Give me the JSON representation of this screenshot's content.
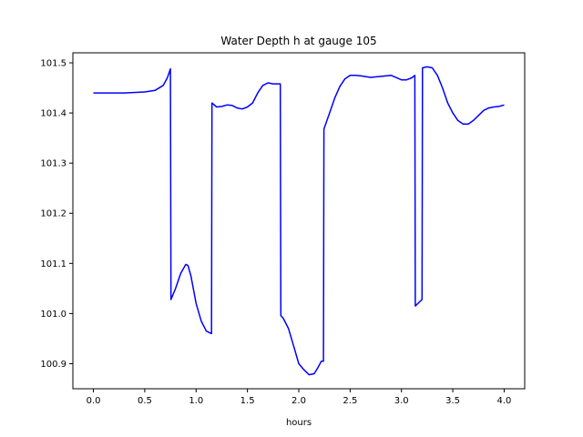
{
  "chart_data": {
    "type": "line",
    "title": "Water Depth h at gauge 105",
    "xlabel": "hours",
    "ylabel": "",
    "xlim": [
      -0.2,
      4.2
    ],
    "ylim": [
      100.85,
      101.52
    ],
    "xticks": [
      0.0,
      0.5,
      1.0,
      1.5,
      2.0,
      2.5,
      3.0,
      3.5,
      4.0
    ],
    "xtick_labels": [
      "0.0",
      "0.5",
      "1.0",
      "1.5",
      "2.0",
      "2.5",
      "3.0",
      "3.5",
      "4.0"
    ],
    "yticks": [
      100.9,
      101.0,
      101.1,
      101.2,
      101.3,
      101.4,
      101.5
    ],
    "ytick_labels": [
      "100.9",
      "101.0",
      "101.1",
      "101.2",
      "101.3",
      "101.4",
      "101.5"
    ],
    "grid": false,
    "series": [
      {
        "color": "#0000ff",
        "x": [
          0.0,
          0.3,
          0.5,
          0.6,
          0.68,
          0.72,
          0.75,
          0.755,
          0.8,
          0.85,
          0.9,
          0.92,
          0.95,
          1.0,
          1.05,
          1.1,
          1.15,
          1.155,
          1.2,
          1.25,
          1.3,
          1.35,
          1.4,
          1.45,
          1.5,
          1.55,
          1.6,
          1.65,
          1.7,
          1.75,
          1.82,
          1.825,
          1.85,
          1.9,
          1.95,
          2.0,
          2.05,
          2.1,
          2.15,
          2.18,
          2.22,
          2.24,
          2.245,
          2.3,
          2.35,
          2.4,
          2.45,
          2.5,
          2.55,
          2.6,
          2.7,
          2.8,
          2.9,
          3.0,
          3.05,
          3.1,
          3.13,
          3.135,
          3.2,
          3.205,
          3.25,
          3.3,
          3.35,
          3.4,
          3.45,
          3.5,
          3.55,
          3.6,
          3.65,
          3.7,
          3.75,
          3.8,
          3.85,
          3.9,
          3.95,
          4.0
        ],
        "y": [
          101.44,
          101.44,
          101.442,
          101.445,
          101.455,
          101.47,
          101.488,
          101.028,
          101.05,
          101.08,
          101.098,
          101.096,
          101.075,
          101.02,
          100.985,
          100.965,
          100.96,
          101.42,
          101.412,
          101.413,
          101.416,
          101.415,
          101.41,
          101.408,
          101.412,
          101.42,
          101.44,
          101.455,
          101.46,
          101.458,
          101.458,
          100.996,
          100.99,
          100.97,
          100.935,
          100.9,
          100.888,
          100.878,
          100.88,
          100.89,
          100.905,
          100.905,
          101.368,
          101.4,
          101.43,
          101.453,
          101.468,
          101.475,
          101.475,
          101.474,
          101.471,
          101.473,
          101.475,
          101.466,
          101.466,
          101.47,
          101.475,
          101.015,
          101.028,
          101.49,
          101.492,
          101.49,
          101.475,
          101.45,
          101.42,
          101.4,
          101.385,
          101.378,
          101.378,
          101.385,
          101.395,
          101.405,
          101.41,
          101.412,
          101.413,
          101.416
        ]
      }
    ]
  }
}
